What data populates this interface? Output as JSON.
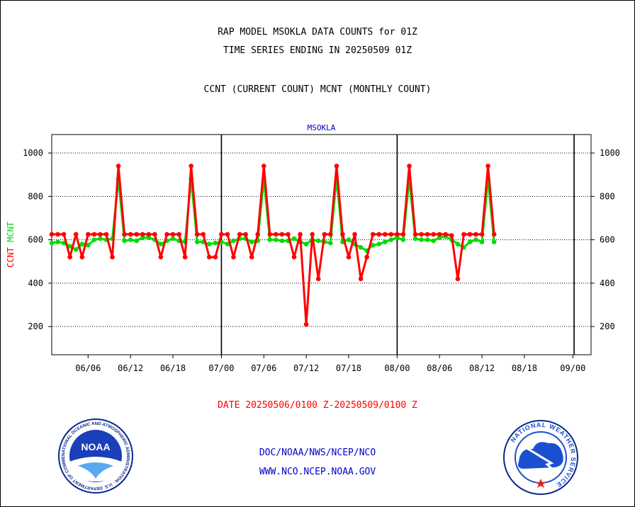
{
  "header": {
    "title_line1": "RAP MODEL MSOKLA DATA COUNTS for 01Z",
    "title_line2": "TIME SERIES ENDING IN 20250509 01Z",
    "subtitle": "CCNT (CURRENT COUNT) MCNT (MONTHLY COUNT)"
  },
  "footer": {
    "date_range": "DATE 20250506/0100 Z-20250509/0100 Z",
    "link1": "DOC/NOAA/NWS/NCEP/NCO",
    "link2": "WWW.NCO.NCEP.NOAA.GOV"
  },
  "logos": {
    "noaa_label": "NOAA",
    "noaa_ring_text": "NATIONAL OCEANIC AND ATMOSPHERIC ADMINISTRATION · U.S. DEPARTMENT OF COMMERCE",
    "nws_ring_text": "NATIONAL WEATHER SERVICE"
  },
  "colors": {
    "ccnt": "#ff0000",
    "mcnt": "#00dd00",
    "link": "#0000cc",
    "date": "#ff0000"
  },
  "chart_data": {
    "type": "line",
    "title": "MSOKLA",
    "ylabel_parts": [
      {
        "text": "CCNT",
        "color": "#ff0000"
      },
      {
        "text": "MCNT",
        "color": "#00dd00"
      }
    ],
    "yticks": [
      200,
      400,
      600,
      800,
      1000
    ],
    "ylim": [
      70,
      1085
    ],
    "xlim": [
      0,
      89
    ],
    "xticks": [
      {
        "pos": 6,
        "label": "06/06"
      },
      {
        "pos": 13,
        "label": "06/12"
      },
      {
        "pos": 20,
        "label": "06/18"
      },
      {
        "pos": 28,
        "label": "07/00"
      },
      {
        "pos": 35,
        "label": "07/06"
      },
      {
        "pos": 42,
        "label": "07/12"
      },
      {
        "pos": 49,
        "label": "07/18"
      },
      {
        "pos": 57,
        "label": "08/00"
      },
      {
        "pos": 64,
        "label": "08/06"
      },
      {
        "pos": 71,
        "label": "08/12"
      },
      {
        "pos": 78,
        "label": "08/18"
      },
      {
        "pos": 86,
        "label": "09/00"
      }
    ],
    "vlines": [
      28,
      57,
      86.2
    ],
    "grid": "horizontal dotted",
    "series": [
      {
        "name": "CCNT",
        "color": "#ff0000",
        "values": [
          625,
          625,
          625,
          520,
          625,
          520,
          625,
          625,
          625,
          625,
          520,
          940,
          625,
          625,
          625,
          625,
          625,
          625,
          520,
          625,
          625,
          625,
          520,
          940,
          625,
          625,
          520,
          520,
          625,
          625,
          520,
          625,
          625,
          520,
          625,
          940,
          625,
          625,
          625,
          625,
          520,
          625,
          210,
          625,
          420,
          625,
          625,
          940,
          625,
          520,
          625,
          420,
          520,
          625,
          625,
          625,
          625,
          625,
          625,
          940,
          625,
          625,
          625,
          625,
          625,
          625,
          620,
          420,
          625,
          625,
          625,
          625,
          940,
          625
        ]
      },
      {
        "name": "MCNT",
        "color": "#00dd00",
        "values": [
          585,
          590,
          585,
          570,
          555,
          580,
          575,
          600,
          605,
          600,
          605,
          880,
          595,
          600,
          595,
          610,
          610,
          600,
          580,
          595,
          605,
          595,
          590,
          880,
          590,
          590,
          580,
          585,
          590,
          580,
          595,
          605,
          605,
          590,
          595,
          880,
          600,
          600,
          595,
          595,
          605,
          590,
          580,
          600,
          595,
          590,
          585,
          885,
          590,
          600,
          580,
          565,
          550,
          575,
          580,
          590,
          600,
          610,
          600,
          880,
          605,
          600,
          600,
          595,
          610,
          615,
          600,
          580,
          565,
          590,
          600,
          590,
          880,
          590
        ]
      }
    ]
  }
}
